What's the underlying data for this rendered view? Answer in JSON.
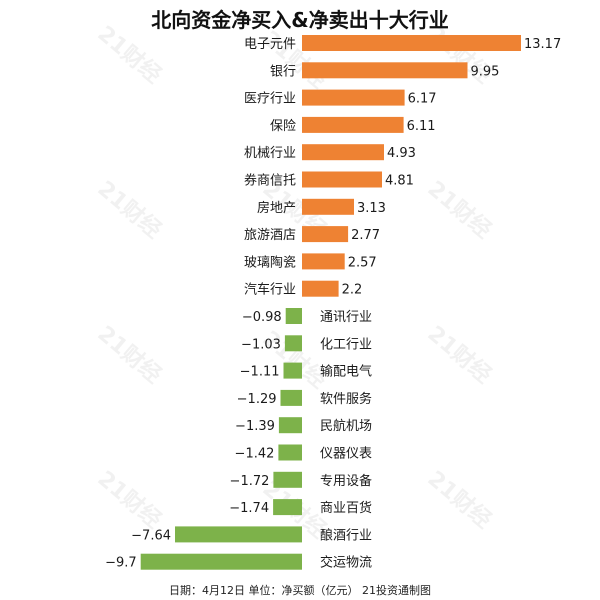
{
  "chart_data": {
    "type": "bar",
    "orientation": "horizontal",
    "title": "北向资金净买入&净卖出十大行业",
    "footer": "日期：4月12日 单位：净买额（亿元） 21投资通制图",
    "watermark": "21财经",
    "xlabel": "",
    "ylabel": "",
    "grid": false,
    "colors": {
      "positive": "#EE8233",
      "negative": "#7DB24A"
    },
    "categories": [
      "电子元件",
      "银行",
      "医疗行业",
      "保险",
      "机械行业",
      "券商信托",
      "房地产",
      "旅游酒店",
      "玻璃陶瓷",
      "汽车行业",
      "通讯行业",
      "化工行业",
      "输配电气",
      "软件服务",
      "民航机场",
      "仪器仪表",
      "专用设备",
      "商业百货",
      "酿酒行业",
      "交运物流"
    ],
    "values": [
      13.17,
      9.95,
      6.17,
      6.11,
      4.93,
      4.81,
      3.13,
      2.77,
      2.57,
      2.2,
      -0.98,
      -1.03,
      -1.11,
      -1.29,
      -1.39,
      -1.42,
      -1.72,
      -1.74,
      -7.64,
      -9.7
    ],
    "value_labels": [
      "13.17",
      "9.95",
      "6.17",
      "6.11",
      "4.93",
      "4.81",
      "3.13",
      "2.77",
      "2.57",
      "2.2",
      "−0.98",
      "−1.03",
      "−1.11",
      "−1.29",
      "−1.39",
      "−1.42",
      "−1.72",
      "−1.74",
      "−7.64",
      "−9.7"
    ],
    "xlim": [
      -9.7,
      13.17
    ]
  }
}
